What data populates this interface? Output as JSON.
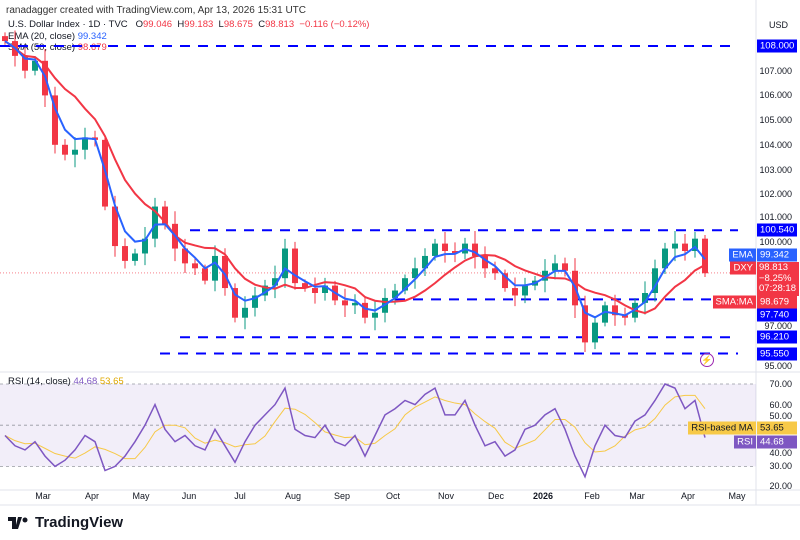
{
  "credit": "ranadagger created with TradingView.com, Apr 13, 2026 15:31 UTC",
  "legend": {
    "symbol": "U.S. Dollar Index · 1D · TVC",
    "o_label": "O",
    "o": "99.046",
    "h_label": "H",
    "h": "99.183",
    "l_label": "L",
    "l": "98.675",
    "c_label": "C",
    "c": "98.813",
    "change": "−0.116 (−0.12%)",
    "ema_label": "EMA (20, close)",
    "ema_value": "99.342",
    "sma_label": "SMA (50, close)",
    "sma_value": "98.679",
    "rsi_label": "RSI (14, close)",
    "rsi_value": "44.68",
    "rsi_ma_value": "53.65"
  },
  "axis": {
    "currency": "USD",
    "price_ticks": [
      "107.000",
      "106.000",
      "105.000",
      "104.000",
      "103.000",
      "102.000",
      "101.000",
      "100.000",
      "97.000",
      "95.000"
    ],
    "rsi_ticks": [
      "70.00",
      "60.00",
      "50.00",
      "40.00",
      "30.00",
      "20.00"
    ],
    "time_labels": [
      "Mar",
      "Apr",
      "May",
      "Jun",
      "Jul",
      "Aug",
      "Sep",
      "Oct",
      "Nov",
      "Dec",
      "2026",
      "Feb",
      "Mar",
      "Apr",
      "May"
    ]
  },
  "levels": [
    {
      "label": "108.000",
      "value": 108.0
    },
    {
      "label": "100.540",
      "value": 100.54
    },
    {
      "label": "97.740",
      "value": 97.74
    },
    {
      "label": "96.210",
      "value": 96.21
    },
    {
      "label": "95.550",
      "value": 95.55
    }
  ],
  "tags": {
    "ema_name": "EMA",
    "ema_value": "99.342",
    "dxy_name": "DXY",
    "dxy_value": "98.813",
    "dxy_change": "−8.25%",
    "dxy_countdown": "07:28:18",
    "sma_name": "SMA:MA",
    "sma_value": "98.679",
    "rsi_ma_name": "RSI-based MA",
    "rsi_ma_value": "53.65",
    "rsi_name": "RSI",
    "rsi_value": "44.68"
  },
  "brand": "TradingView",
  "colors": {
    "up": "#089981",
    "down": "#f23645",
    "ema": "#2962ff",
    "sma": "#f23645",
    "level": "#0000ff",
    "rsi": "#7e57c2",
    "rsi_ma": "#f7c948"
  },
  "chart_data": {
    "type": "candlestick",
    "title": "U.S. Dollar Index · 1D · TVC",
    "ylim": [
      94.5,
      108.7
    ],
    "close": [
      108.2,
      107.6,
      107.0,
      107.4,
      106.0,
      104.0,
      103.6,
      103.8,
      104.3,
      104.2,
      101.5,
      99.9,
      99.3,
      99.6,
      100.2,
      101.5,
      100.8,
      99.8,
      99.2,
      99.0,
      98.5,
      99.5,
      98.2,
      97.0,
      97.4,
      97.9,
      98.3,
      98.6,
      99.8,
      98.4,
      98.2,
      98.0,
      98.3,
      97.7,
      97.5,
      97.6,
      97.0,
      97.2,
      97.8,
      98.1,
      98.6,
      99.0,
      99.5,
      100.0,
      99.7,
      99.6,
      100.0,
      99.5,
      99.0,
      98.8,
      98.2,
      97.9,
      98.3,
      98.5,
      98.9,
      99.2,
      98.9,
      97.5,
      96.0,
      96.8,
      97.5,
      97.1,
      97.0,
      97.6,
      98.0,
      99.0,
      99.8,
      100.0,
      99.7,
      100.2,
      98.8
    ],
    "rsi": [
      45,
      40,
      38,
      42,
      35,
      30,
      33,
      38,
      45,
      42,
      28,
      30,
      35,
      42,
      50,
      60,
      48,
      42,
      45,
      40,
      38,
      48,
      40,
      32,
      42,
      50,
      55,
      60,
      68,
      48,
      45,
      44,
      50,
      42,
      40,
      45,
      35,
      45,
      55,
      58,
      62,
      60,
      65,
      68,
      55,
      55,
      62,
      50,
      40,
      42,
      35,
      38,
      48,
      50,
      55,
      58,
      48,
      35,
      25,
      40,
      50,
      45,
      44,
      52,
      55,
      62,
      70,
      68,
      58,
      62,
      44
    ],
    "rsi_ylim": [
      15,
      75
    ]
  }
}
